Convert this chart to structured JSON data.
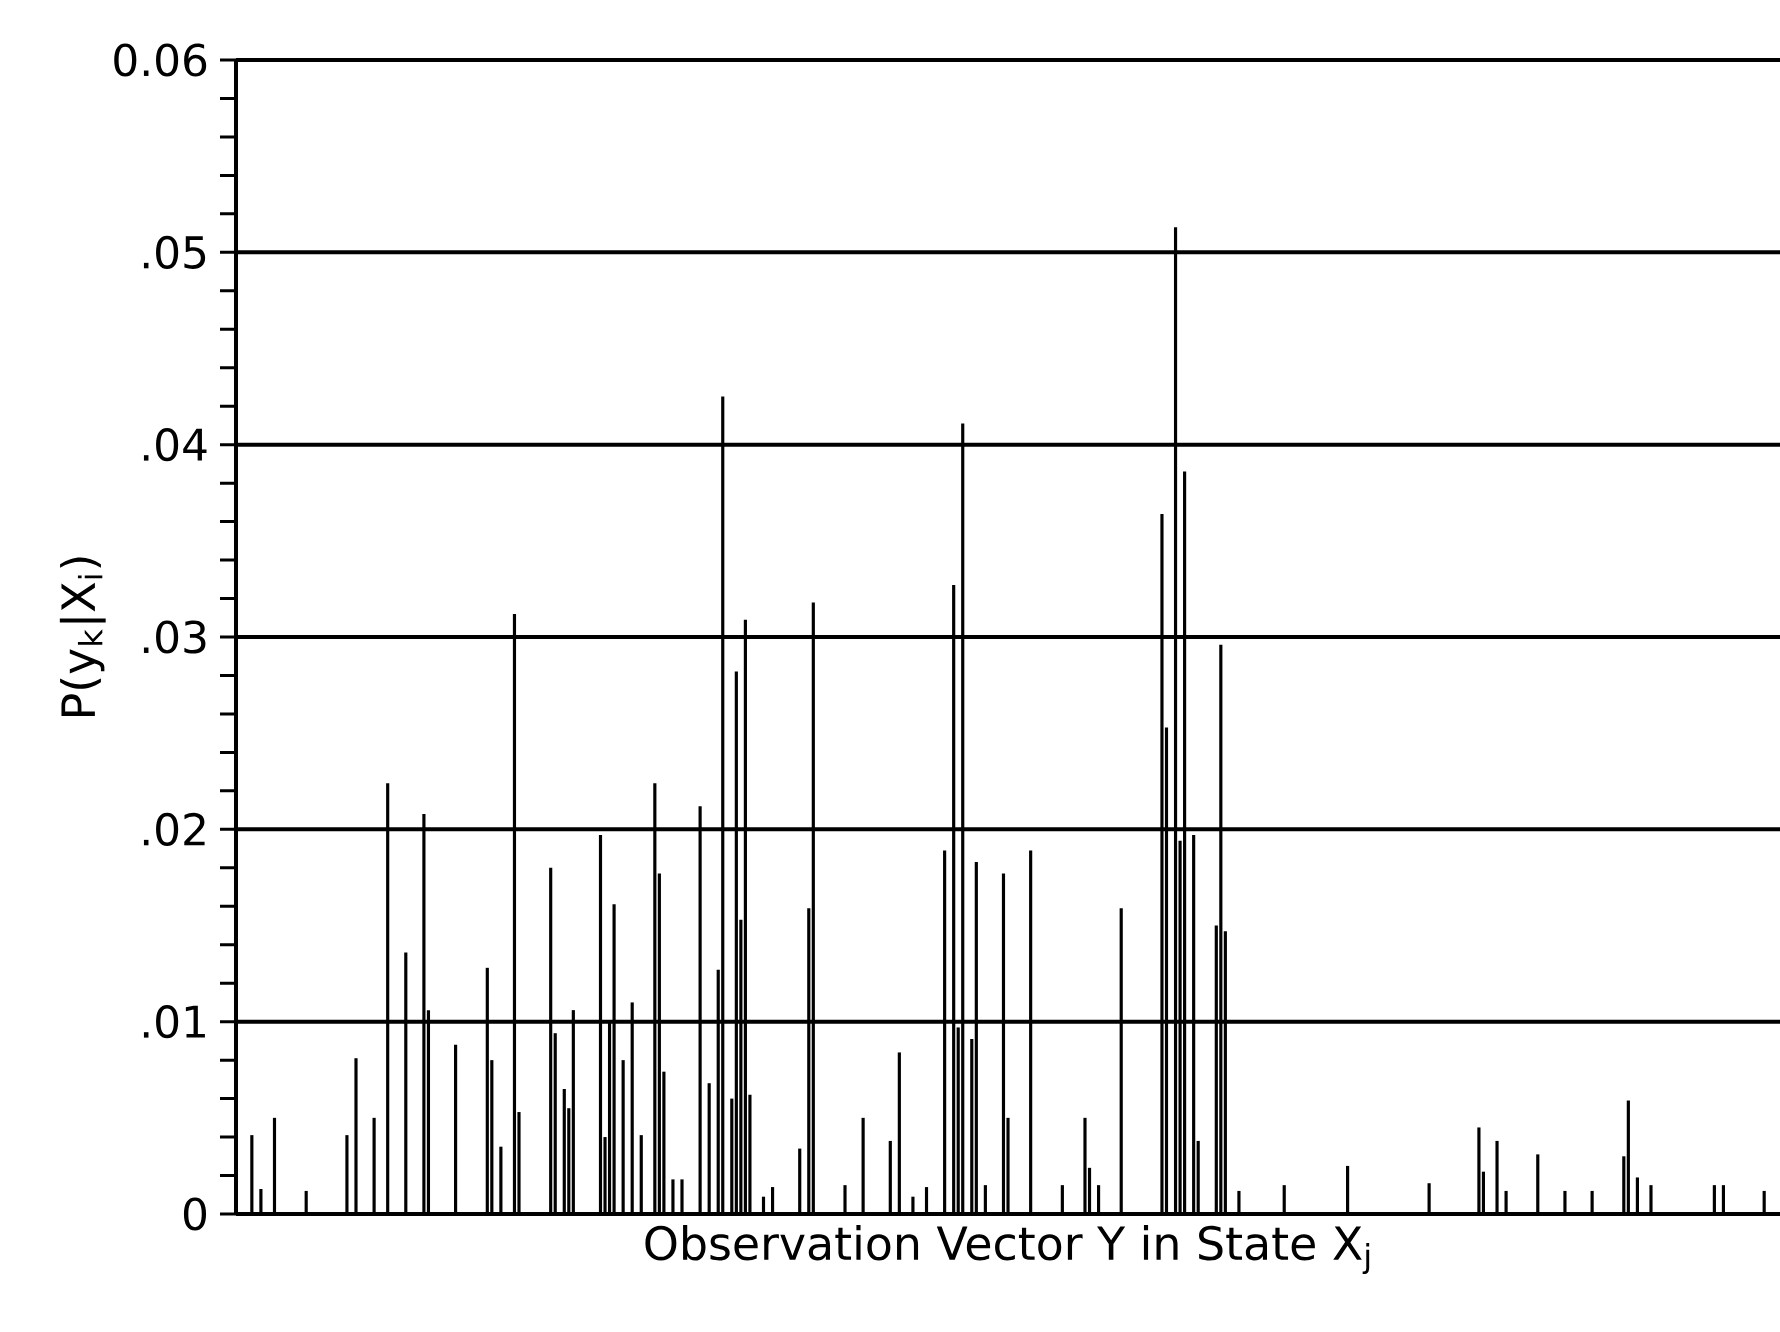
{
  "chart_data": {
    "type": "bar",
    "xlabel": "Observation Vector Y in State X$_{j}$",
    "ylabel": "P(y$_{k}$|X$_{i}$)",
    "color": "#000000",
    "ylim": [
      0,
      0.06
    ],
    "yticks": [
      0,
      {
        "value": 0.002,
        "label": null
      },
      {
        "value": 0.004,
        "label": null
      },
      {
        "value": 0.006,
        "label": null
      },
      {
        "value": 0.008,
        "label": null
      },
      {
        "value": 0.01,
        "label": ".01"
      },
      {
        "value": 0.012,
        "label": null
      },
      {
        "value": 0.014,
        "label": null
      },
      {
        "value": 0.016,
        "label": null
      },
      {
        "value": 0.018,
        "label": null
      },
      {
        "value": 0.02,
        "label": ".02"
      },
      {
        "value": 0.022,
        "label": null
      },
      {
        "value": 0.024,
        "label": null
      },
      {
        "value": 0.026,
        "label": null
      },
      {
        "value": 0.028,
        "label": null
      },
      {
        "value": 0.03,
        "label": ".03"
      },
      {
        "value": 0.032,
        "label": null
      },
      {
        "value": 0.034,
        "label": null
      },
      {
        "value": 0.036,
        "label": null
      },
      {
        "value": 0.038,
        "label": null
      },
      {
        "value": 0.04,
        "label": ".04"
      },
      {
        "value": 0.042,
        "label": null
      },
      {
        "value": 0.044,
        "label": null
      },
      {
        "value": 0.046,
        "label": null
      },
      {
        "value": 0.048,
        "label": null
      },
      {
        "value": 0.05,
        "label": ".05"
      },
      {
        "value": 0.052,
        "label": null
      },
      {
        "value": 0.054,
        "label": null
      },
      {
        "value": 0.056,
        "label": null
      },
      {
        "value": 0.058,
        "label": null
      },
      {
        "value": 0.06,
        "label": "0.06"
      }
    ],
    "grid": "y",
    "categories": [
      null,
      null,
      null,
      null,
      null,
      null,
      null,
      null,
      null,
      null,
      null,
      null,
      null,
      null,
      null,
      null,
      null,
      null,
      null,
      null,
      null,
      null,
      null,
      null,
      null,
      null,
      null,
      null,
      null,
      null,
      null,
      null,
      null,
      null,
      null,
      null,
      null,
      null,
      null,
      null,
      null,
      null,
      null,
      null,
      null,
      null,
      null,
      null,
      null,
      null,
      null,
      null,
      null,
      null,
      null,
      null,
      null,
      null,
      null,
      null,
      null,
      null,
      null,
      null,
      null,
      null,
      null,
      null,
      null,
      null,
      null,
      null,
      null,
      null,
      null,
      null,
      null,
      null,
      null,
      null,
      null,
      null,
      null,
      null,
      null,
      null,
      null,
      null,
      null,
      null,
      null,
      null,
      null,
      null,
      null,
      null,
      null,
      null,
      null,
      null,
      null,
      null,
      null,
      null,
      null,
      null,
      null,
      null,
      null,
      null,
      null,
      null,
      null,
      null,
      null,
      null,
      null,
      null,
      null,
      null,
      null,
      null,
      null,
      null,
      null,
      null,
      null,
      null,
      null,
      null,
      null,
      null,
      null,
      null,
      null,
      null,
      null,
      null,
      null,
      null,
      null,
      null,
      null,
      null,
      null,
      null,
      null,
      null,
      null,
      null,
      null,
      null,
      null,
      null,
      null,
      null,
      null,
      null,
      null,
      null,
      null,
      null,
      null,
      null,
      null,
      null,
      null,
      null,
      null,
      null,
      null,
      null,
      null,
      null,
      null,
      null,
      null,
      null,
      null,
      null,
      null,
      null,
      null,
      null,
      null,
      null,
      null,
      null,
      null,
      null,
      null,
      null,
      null,
      null,
      null,
      null,
      null,
      null,
      null,
      null,
      null,
      null,
      null,
      null,
      null,
      null,
      null,
      null,
      null,
      null,
      null,
      null,
      null,
      null,
      null,
      null,
      null,
      null,
      null,
      null,
      null,
      null,
      null,
      null,
      null,
      null,
      null,
      null,
      null,
      null,
      null,
      null,
      null,
      null,
      null,
      null,
      null,
      null,
      null,
      null,
      null,
      null,
      null,
      null,
      null,
      null,
      null,
      null,
      null,
      null,
      null,
      null,
      null,
      null,
      null,
      null,
      null,
      null,
      null,
      null,
      null,
      null,
      null,
      null,
      null,
      null,
      null,
      null,
      null,
      null,
      null,
      null,
      null,
      null,
      null,
      null,
      null,
      null,
      null,
      null,
      null,
      null,
      null,
      null,
      null,
      null,
      null,
      null,
      null,
      null,
      null,
      null,
      null,
      null,
      null,
      null,
      null,
      null,
      null,
      null,
      null,
      null,
      null,
      null,
      null,
      null,
      null,
      null,
      null,
      null,
      null,
      null,
      null,
      null,
      null,
      null,
      null,
      null,
      null,
      null,
      null,
      null,
      null,
      null,
      null,
      null,
      null,
      null,
      null,
      null,
      null,
      null,
      null,
      null,
      null,
      null,
      null,
      null,
      null,
      null,
      null
    ],
    "values": [
      null,
      null,
      null,
      0.0041,
      null,
      0.0013,
      null,
      null,
      0.005,
      null,
      null,
      null,
      null,
      null,
      null,
      0.0012,
      null,
      null,
      null,
      null,
      null,
      null,
      null,
      null,
      0.0041,
      null,
      0.0081,
      null,
      null,
      null,
      0.005,
      null,
      null,
      0.0224,
      null,
      null,
      null,
      0.0136,
      null,
      null,
      null,
      0.0208,
      0.0106,
      null,
      null,
      null,
      null,
      null,
      0.0088,
      null,
      null,
      null,
      null,
      null,
      null,
      0.0128,
      0.008,
      null,
      0.0035,
      null,
      null,
      0.0312,
      0.0053,
      null,
      null,
      null,
      null,
      null,
      null,
      0.018,
      0.0094,
      null,
      0.0065,
      0.0055,
      0.0106,
      null,
      null,
      null,
      null,
      null,
      0.0197,
      0.004,
      0.01,
      0.0161,
      null,
      0.008,
      null,
      0.011,
      null,
      0.0041,
      null,
      null,
      0.0224,
      0.0177,
      0.0074,
      null,
      0.0018,
      null,
      0.0018,
      null,
      null,
      null,
      0.0212,
      null,
      0.0068,
      null,
      0.0127,
      0.0425,
      null,
      0.006,
      0.0282,
      0.0153,
      0.0309,
      0.0062,
      null,
      null,
      0.0009,
      null,
      0.0014,
      null,
      null,
      null,
      null,
      null,
      0.0034,
      null,
      0.0159,
      0.0318,
      null,
      null,
      null,
      null,
      null,
      null,
      0.0015,
      null,
      null,
      null,
      0.005,
      null,
      null,
      null,
      null,
      null,
      0.0038,
      null,
      0.0084,
      null,
      null,
      0.0009,
      null,
      null,
      0.0014,
      null,
      null,
      null,
      0.0189,
      null,
      0.0327,
      0.0097,
      0.0411,
      null,
      0.0091,
      0.0183,
      null,
      0.0015,
      null,
      null,
      null,
      0.0177,
      0.005,
      null,
      null,
      null,
      null,
      0.0189,
      null,
      null,
      null,
      null,
      null,
      null,
      0.0015,
      null,
      null,
      null,
      null,
      0.005,
      0.0024,
      null,
      0.0015,
      null,
      null,
      null,
      null,
      0.0159,
      null,
      null,
      null,
      null,
      null,
      null,
      null,
      null,
      0.0364,
      0.0253,
      null,
      0.0513,
      0.0194,
      0.0386,
      null,
      0.0197,
      0.0038,
      null,
      null,
      null,
      0.015,
      0.0296,
      0.0147,
      null,
      null,
      0.0012,
      null,
      null,
      null,
      null,
      null,
      null,
      null,
      null,
      null,
      0.0015,
      null,
      null,
      null,
      null,
      null,
      null,
      null,
      null,
      null,
      null,
      null,
      null,
      null,
      0.0025,
      null,
      null,
      null,
      null,
      null,
      null,
      null,
      null,
      null,
      null,
      null,
      null,
      null,
      null,
      null,
      null,
      null,
      0.0016,
      null,
      null,
      null,
      null,
      null,
      null,
      null,
      null,
      null,
      null,
      0.0045,
      0.0022,
      null,
      null,
      0.0038,
      null,
      0.0012,
      null,
      null,
      null,
      null,
      null,
      null,
      0.0031,
      null,
      null,
      null,
      null,
      null,
      0.0012,
      null,
      null,
      null,
      null,
      null,
      0.0012,
      null,
      null,
      null,
      null,
      null,
      null,
      0.003,
      0.0059,
      null,
      0.0019,
      null,
      null,
      0.0015,
      null,
      null,
      null,
      null,
      null,
      null,
      null,
      null,
      null,
      null,
      null,
      null,
      null,
      0.0015,
      null,
      0.0015,
      null,
      null,
      null,
      null,
      null,
      null,
      null,
      null,
      0.0012,
      null,
      null,
      null
    ]
  }
}
